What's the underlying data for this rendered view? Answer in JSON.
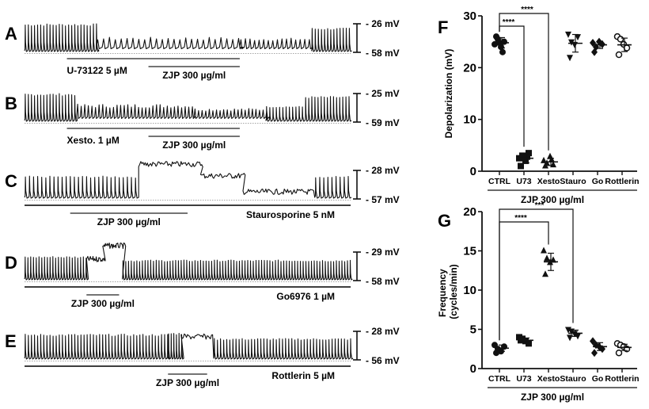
{
  "figure": {
    "traces": [
      {
        "panel": "A",
        "scale_top": "- 26 mV",
        "scale_bottom": "- 58 mV",
        "bars": [
          {
            "label": "U-73122 5 µM",
            "start": 0.13,
            "end": 0.66,
            "label_pos": "left-below"
          },
          {
            "label": "ZJP 300 µg/ml",
            "start": 0.38,
            "end": 0.66,
            "label_pos": "center-below"
          }
        ],
        "phases": [
          {
            "from": 0.0,
            "to": 0.22,
            "type": "spikes",
            "amp": 1.0,
            "period": 0.0095
          },
          {
            "from": 0.22,
            "to": 0.66,
            "type": "small",
            "amp": 0.35,
            "period": 0.018
          },
          {
            "from": 0.66,
            "to": 0.88,
            "type": "small",
            "amp": 0.32,
            "period": 0.014
          },
          {
            "from": 0.88,
            "to": 1.0,
            "type": "spikes",
            "amp": 0.85,
            "period": 0.0095
          }
        ]
      },
      {
        "panel": "B",
        "scale_top": "- 25 mV",
        "scale_bottom": "- 59 mV",
        "bars": [
          {
            "label": "Xesto. 1 µM",
            "start": 0.13,
            "end": 0.66,
            "label_pos": "left-below"
          },
          {
            "label": "ZJP 300 µg/ml",
            "start": 0.38,
            "end": 0.66,
            "label_pos": "center-below"
          }
        ],
        "phases": [
          {
            "from": 0.0,
            "to": 0.16,
            "type": "spikes",
            "amp": 1.0,
            "period": 0.0095
          },
          {
            "from": 0.16,
            "to": 0.52,
            "type": "small",
            "amp": 0.45,
            "period": 0.011
          },
          {
            "from": 0.52,
            "to": 0.74,
            "type": "small",
            "amp": 0.3,
            "period": 0.011
          },
          {
            "from": 0.74,
            "to": 0.86,
            "type": "spikes",
            "amp": 0.55,
            "period": 0.01
          },
          {
            "from": 0.86,
            "to": 1.0,
            "type": "spikes",
            "amp": 0.9,
            "period": 0.0095
          }
        ]
      },
      {
        "panel": "C",
        "scale_top": "- 28 mV",
        "scale_bottom": "- 57 mV",
        "bars": [
          {
            "label": "Staurosporine 5 nM",
            "start": 0.0,
            "end": 1.0,
            "label_pos": "right-below"
          },
          {
            "label": "ZJP 300 µg/ml",
            "start": 0.14,
            "end": 0.5,
            "label_pos": "center-below"
          }
        ],
        "phases": [
          {
            "from": 0.0,
            "to": 0.35,
            "type": "spikes",
            "amp": 0.8,
            "period": 0.0125
          },
          {
            "from": 0.35,
            "to": 0.54,
            "type": "plateau",
            "amp": 0.95,
            "period": 0.02
          },
          {
            "from": 0.54,
            "to": 0.67,
            "type": "plateau",
            "amp": 0.6,
            "period": 0.02
          },
          {
            "from": 0.67,
            "to": 0.89,
            "type": "plateau",
            "amp": 0.12,
            "period": 0.02
          },
          {
            "from": 0.89,
            "to": 1.0,
            "type": "spikes",
            "amp": 0.8,
            "period": 0.0125
          }
        ]
      },
      {
        "panel": "D",
        "scale_top": "- 29 mV",
        "scale_bottom": "- 58 mV",
        "bars": [
          {
            "label": "Go6976 1 µM",
            "start": 0.0,
            "end": 1.0,
            "label_pos": "right-below"
          },
          {
            "label": "ZJP 300 µg/ml",
            "start": 0.19,
            "end": 0.29,
            "label_pos": "center-below"
          }
        ],
        "phases": [
          {
            "from": 0.0,
            "to": 0.19,
            "type": "spikes",
            "amp": 0.85,
            "period": 0.0085
          },
          {
            "from": 0.19,
            "to": 0.24,
            "type": "plateau",
            "amp": 0.55,
            "period": 0.012
          },
          {
            "from": 0.24,
            "to": 0.3,
            "type": "plateau",
            "amp": 0.95,
            "period": 0.012
          },
          {
            "from": 0.3,
            "to": 1.0,
            "type": "spikes",
            "amp": 0.72,
            "period": 0.0085
          }
        ]
      },
      {
        "panel": "E",
        "scale_top": "- 28 mV",
        "scale_bottom": "- 56 mV",
        "bars": [
          {
            "label": "Rottlerin 5 µM",
            "start": 0.0,
            "end": 1.0,
            "label_pos": "right-below"
          },
          {
            "label": "ZJP 300 µg/ml",
            "start": 0.44,
            "end": 0.56,
            "label_pos": "center-below"
          }
        ],
        "phases": [
          {
            "from": 0.0,
            "to": 0.44,
            "type": "spikes",
            "amp": 0.9,
            "period": 0.0095
          },
          {
            "from": 0.44,
            "to": 0.48,
            "type": "spikes",
            "amp": 0.95,
            "period": 0.008
          },
          {
            "from": 0.48,
            "to": 0.58,
            "type": "plateau",
            "amp": 0.6,
            "period": 0.02
          },
          {
            "from": 0.58,
            "to": 1.0,
            "type": "spikes",
            "amp": 0.75,
            "period": 0.0095
          }
        ]
      }
    ],
    "group_label": "ZJP 300 µg/ml"
  },
  "chart_data": [
    {
      "panel": "F",
      "type": "scatter",
      "title": "",
      "xlabel": "ZJP 300 µg/ml",
      "ylabel": "Depolarization (mV)",
      "ylim": [
        0,
        30
      ],
      "yticks": [
        0,
        10,
        20,
        30
      ],
      "categories": [
        "CTRL",
        "U73",
        "Xesto",
        "Stauro",
        "Go",
        "Rottlerin"
      ],
      "markers": [
        "circle",
        "square",
        "triangle-up",
        "triangle-down",
        "diamond",
        "circle-open"
      ],
      "series": [
        {
          "name": "CTRL",
          "values": [
            24.5,
            25.5,
            24.0,
            25.0,
            26.0,
            23.0,
            24.8
          ],
          "mean": 24.8,
          "sd": 1.0
        },
        {
          "name": "U73",
          "values": [
            2.5,
            3.0,
            2.0,
            3.5,
            1.0,
            2.8
          ],
          "mean": 2.5,
          "sd": 0.9
        },
        {
          "name": "Xesto",
          "values": [
            2.0,
            1.5,
            2.8,
            1.2,
            1.0,
            2.2
          ],
          "mean": 1.8,
          "sd": 0.7
        },
        {
          "name": "Stauro",
          "values": [
            26.5,
            25.0,
            24.5,
            26.0,
            22.0
          ],
          "mean": 24.7,
          "sd": 1.7
        },
        {
          "name": "Go",
          "values": [
            24.8,
            24.0,
            25.0,
            24.5,
            23.0
          ],
          "mean": 24.4,
          "sd": 0.7
        },
        {
          "name": "Rottlerin",
          "values": [
            26.0,
            25.5,
            24.5,
            23.8,
            22.5
          ],
          "mean": 24.4,
          "sd": 1.3
        }
      ],
      "significance": [
        {
          "from": "CTRL",
          "to": "U73",
          "label": "****"
        },
        {
          "from": "CTRL",
          "to": "Xesto",
          "label": "****"
        }
      ]
    },
    {
      "panel": "G",
      "type": "scatter",
      "title": "",
      "xlabel": "ZJP 300 µg/ml",
      "ylabel": "Frequency (cycles/min)",
      "ylim": [
        0,
        20
      ],
      "yticks": [
        0,
        5,
        10,
        15,
        20
      ],
      "categories": [
        "CTRL",
        "U73",
        "Xesto",
        "Stauro",
        "Go",
        "Rottlerin"
      ],
      "markers": [
        "circle",
        "square",
        "triangle-up",
        "triangle-down",
        "diamond",
        "circle-open"
      ],
      "series": [
        {
          "name": "CTRL",
          "values": [
            3.0,
            2.5,
            2.2,
            2.8,
            2.0
          ],
          "mean": 2.6,
          "sd": 0.4
        },
        {
          "name": "U73",
          "values": [
            4.0,
            3.8,
            3.5,
            3.2,
            3.6
          ],
          "mean": 3.6,
          "sd": 0.3
        },
        {
          "name": "Xesto",
          "values": [
            15.0,
            14.0,
            13.5,
            13.8,
            12.0
          ],
          "mean": 13.6,
          "sd": 1.1
        },
        {
          "name": "Stauro",
          "values": [
            5.0,
            4.8,
            4.5,
            4.2,
            4.0
          ],
          "mean": 4.5,
          "sd": 0.4
        },
        {
          "name": "Go",
          "values": [
            3.5,
            3.0,
            2.8,
            2.5,
            2.0
          ],
          "mean": 2.8,
          "sd": 0.5
        },
        {
          "name": "Rottlerin",
          "values": [
            3.2,
            3.0,
            2.8,
            2.5,
            2.0
          ],
          "mean": 2.7,
          "sd": 0.4
        }
      ],
      "significance": [
        {
          "from": "CTRL",
          "to": "Xesto",
          "label": "****"
        },
        {
          "from": "CTRL",
          "to": "Stauro",
          "label": "***"
        }
      ]
    }
  ]
}
